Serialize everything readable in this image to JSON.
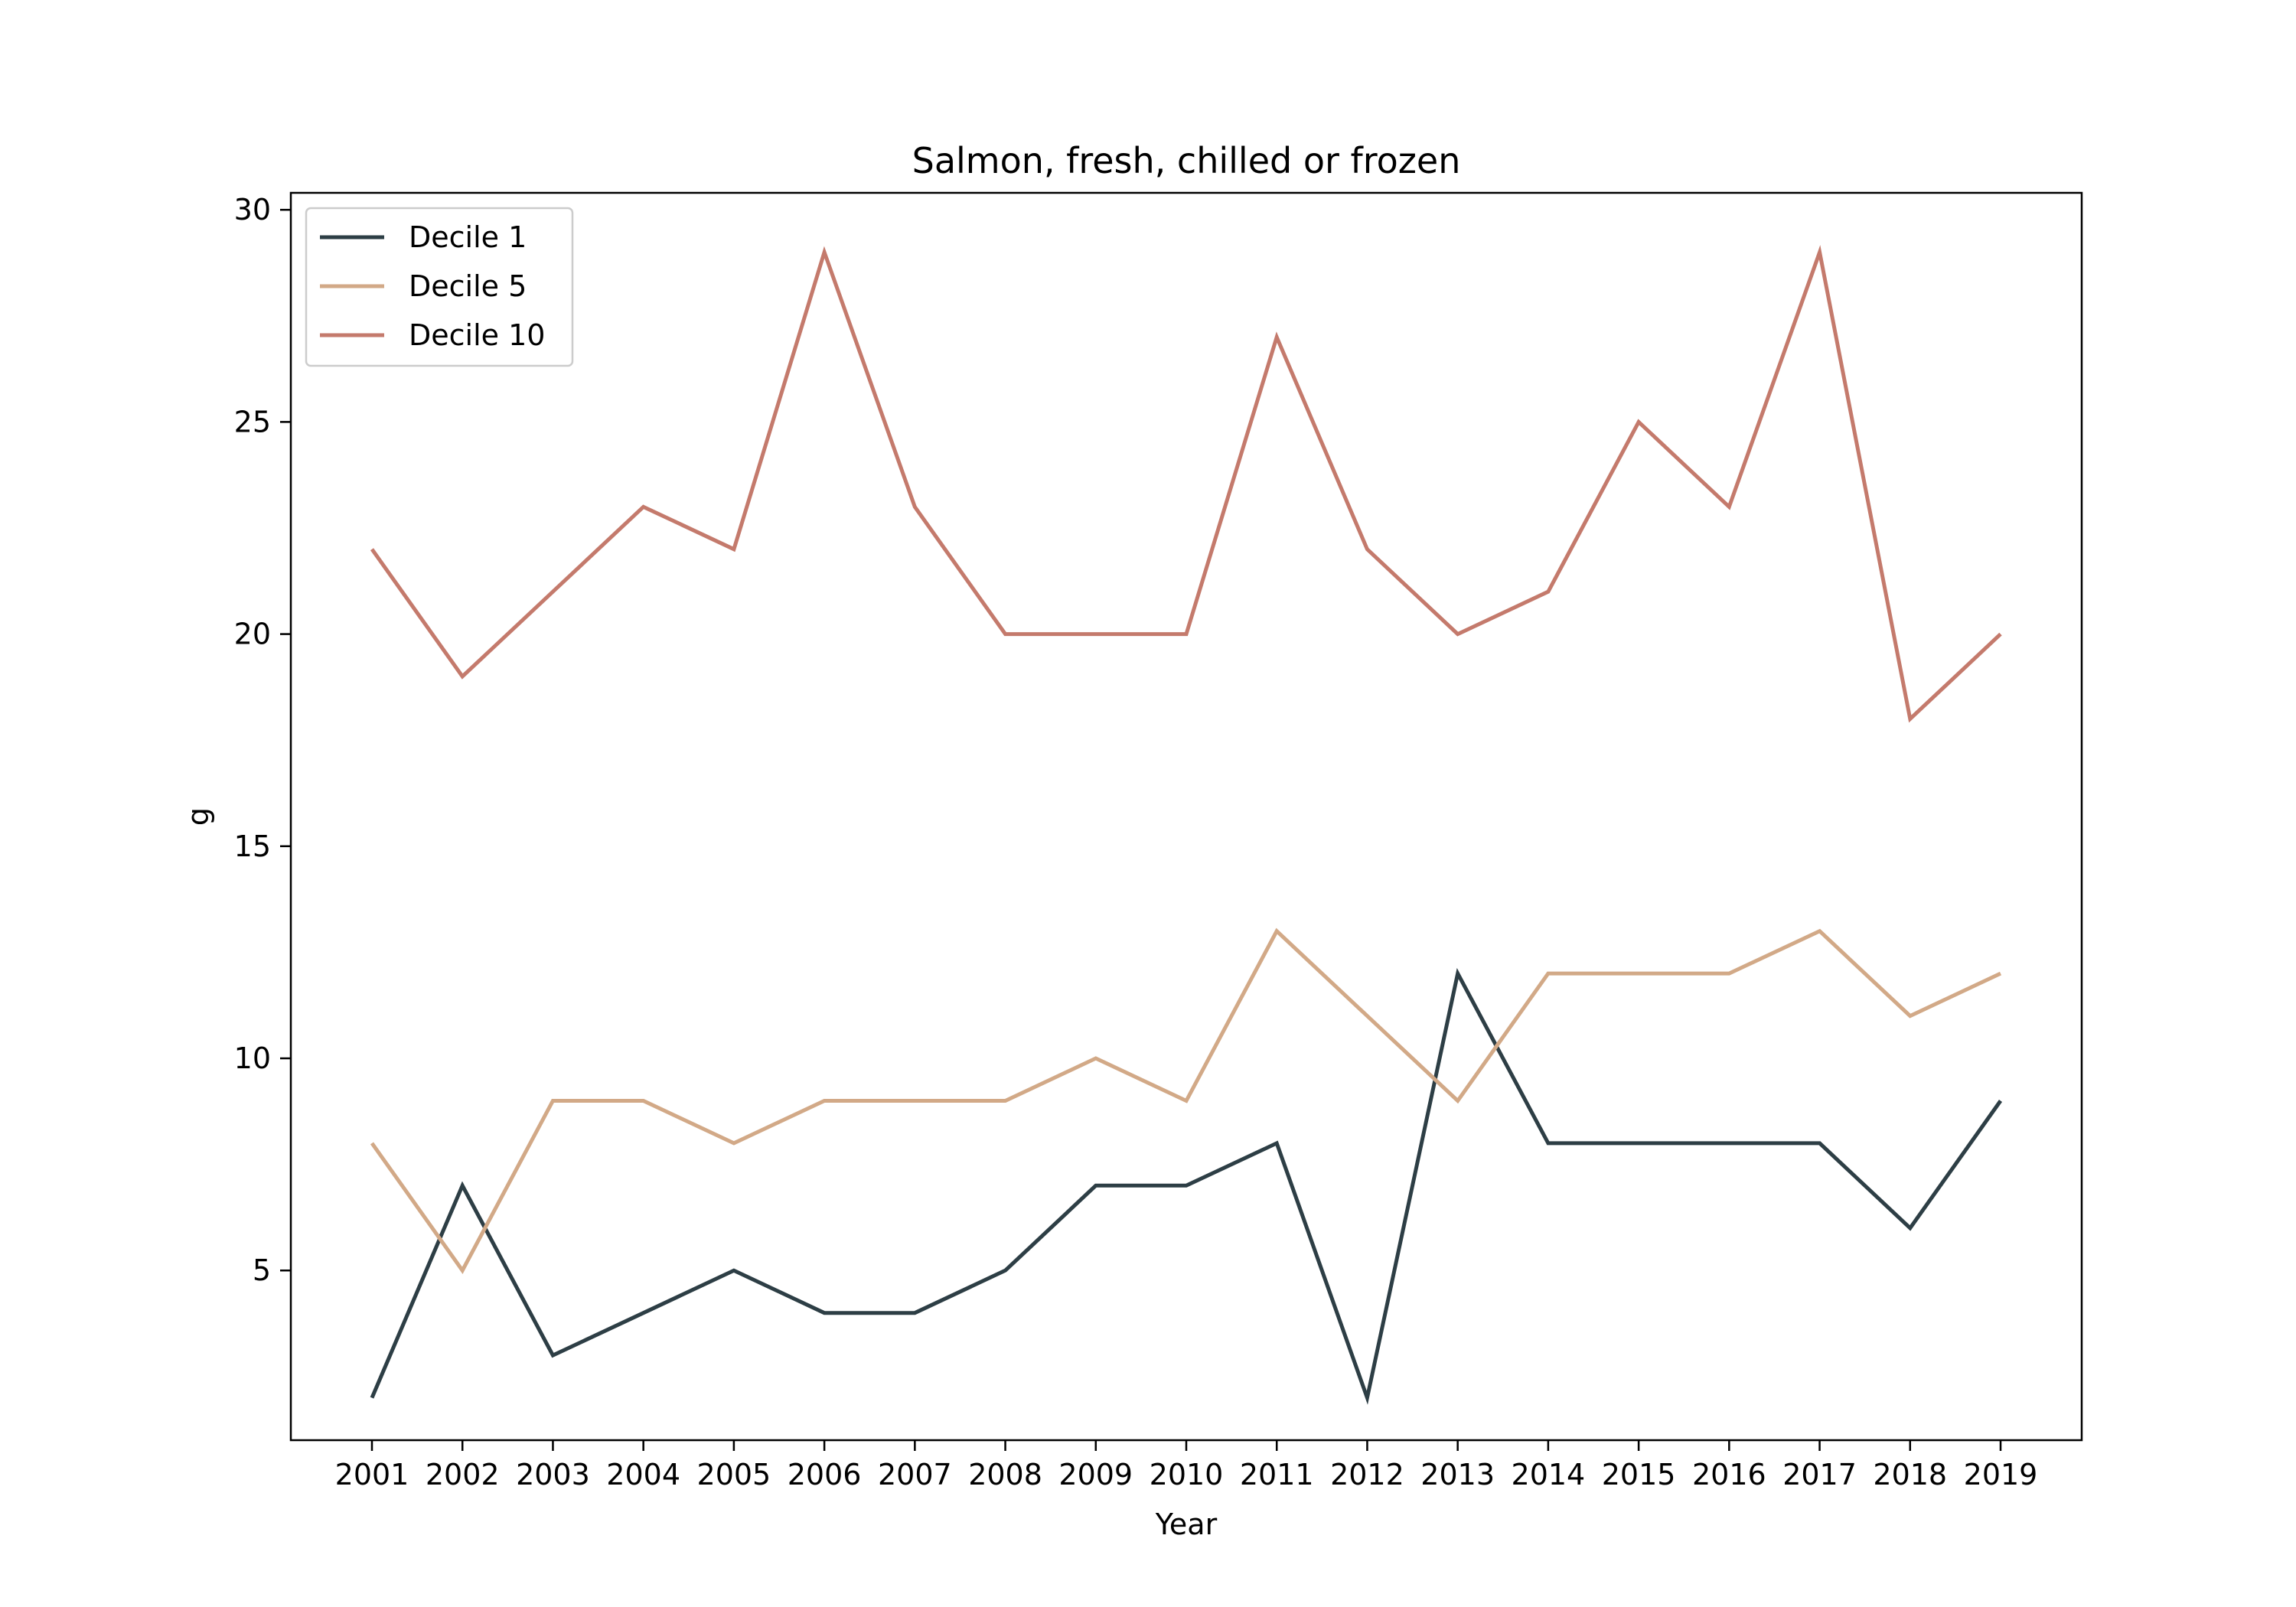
{
  "chart_data": {
    "type": "line",
    "title": "Salmon, fresh, chilled or frozen",
    "xlabel": "Year",
    "ylabel": "g",
    "x": [
      2001,
      2002,
      2003,
      2004,
      2005,
      2006,
      2007,
      2008,
      2009,
      2010,
      2011,
      2012,
      2013,
      2014,
      2015,
      2016,
      2017,
      2018,
      2019
    ],
    "ylim": [
      1,
      30.4
    ],
    "yticks": [
      5,
      10,
      15,
      20,
      25,
      30
    ],
    "grid": false,
    "legend_position": "top-left",
    "series": [
      {
        "name": "Decile 1",
        "color": "#2d3e45",
        "values": [
          2,
          7,
          3,
          4,
          5,
          4,
          4,
          5,
          7,
          7,
          8,
          2,
          12,
          8,
          8,
          8,
          8,
          6,
          9
        ]
      },
      {
        "name": "Decile 5",
        "color": "#d2a987",
        "values": [
          8,
          5,
          9,
          9,
          8,
          9,
          9,
          9,
          10,
          9,
          13,
          11,
          9,
          12,
          12,
          12,
          13,
          11,
          12
        ]
      },
      {
        "name": "Decile 10",
        "color": "#c47a6c",
        "values": [
          22,
          19,
          21,
          23,
          22,
          29,
          23,
          20,
          20,
          20,
          27,
          22,
          20,
          21,
          25,
          23,
          29,
          18,
          20
        ]
      }
    ]
  }
}
